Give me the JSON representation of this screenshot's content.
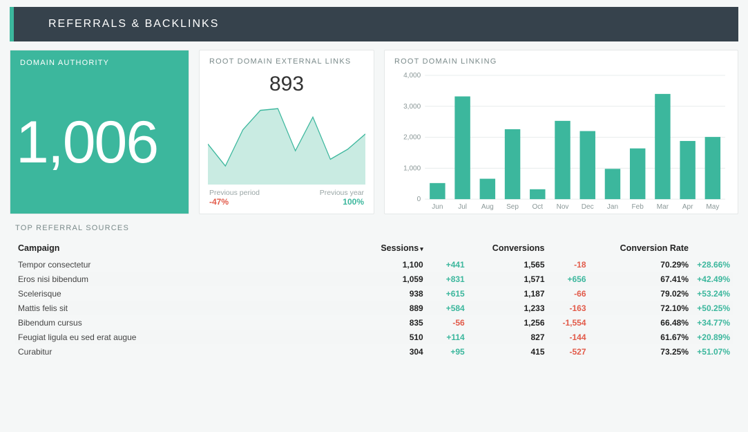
{
  "header": {
    "title": "REFERRALS & BACKLINKS"
  },
  "domain_authority": {
    "title": "DOMAIN AUTHORITY",
    "value": "1,006",
    "bg_color": "#3cb79d",
    "text_color": "#ffffff",
    "value_fontsize": 86
  },
  "external_links": {
    "title": "ROOT DOMAIN EXTERNAL LINKS",
    "value": "893",
    "sparkline": {
      "type": "area-line",
      "points": [
        48,
        22,
        65,
        88,
        90,
        40,
        80,
        30,
        42,
        60
      ],
      "line_color": "#3cb79d",
      "fill_color": "#c9ebe2",
      "line_width": 1.2,
      "y_range": [
        0,
        100
      ]
    },
    "prev_period_label": "Previous period",
    "prev_period_value": "-47%",
    "prev_period_color": "#e25b4a",
    "prev_year_label": "Previous year",
    "prev_year_value": "100%",
    "prev_year_color": "#3cb79d"
  },
  "linking_chart": {
    "title": "ROOT DOMAIN LINKING",
    "type": "bar",
    "categories": [
      "Jun",
      "Jul",
      "Aug",
      "Sep",
      "Oct",
      "Nov",
      "Dec",
      "Jan",
      "Feb",
      "Mar",
      "Apr",
      "May"
    ],
    "values": [
      520,
      3320,
      660,
      2260,
      320,
      2530,
      2200,
      980,
      1640,
      3400,
      1880,
      2010
    ],
    "bar_color": "#3cb79d",
    "ylim": [
      0,
      4000
    ],
    "ytick_step": 1000,
    "grid_color": "#e7ecec",
    "axis_label_color": "#8a9797",
    "axis_fontsize": 10,
    "bar_width": 0.62
  },
  "table": {
    "title": "TOP REFERRAL SOURCES",
    "sort_column": "Sessions",
    "columns": [
      "Campaign",
      "Sessions",
      "",
      "Conversions",
      "",
      "Conversion Rate",
      ""
    ],
    "rows": [
      {
        "campaign": "Tempor consectetur",
        "sessions": "1,100",
        "sessions_d": "+441",
        "sessions_d_pos": true,
        "conv": "1,565",
        "conv_d": "-18",
        "conv_d_pos": false,
        "rate": "70.29%",
        "rate_d": "+28.66%",
        "rate_d_pos": true
      },
      {
        "campaign": "Eros nisi bibendum",
        "sessions": "1,059",
        "sessions_d": "+831",
        "sessions_d_pos": true,
        "conv": "1,571",
        "conv_d": "+656",
        "conv_d_pos": true,
        "rate": "67.41%",
        "rate_d": "+42.49%",
        "rate_d_pos": true
      },
      {
        "campaign": "Scelerisque",
        "sessions": "938",
        "sessions_d": "+615",
        "sessions_d_pos": true,
        "conv": "1,187",
        "conv_d": "-66",
        "conv_d_pos": false,
        "rate": "79.02%",
        "rate_d": "+53.24%",
        "rate_d_pos": true
      },
      {
        "campaign": "Mattis felis sit",
        "sessions": "889",
        "sessions_d": "+584",
        "sessions_d_pos": true,
        "conv": "1,233",
        "conv_d": "-163",
        "conv_d_pos": false,
        "rate": "72.10%",
        "rate_d": "+50.25%",
        "rate_d_pos": true
      },
      {
        "campaign": "Bibendum cursus",
        "sessions": "835",
        "sessions_d": "-56",
        "sessions_d_pos": false,
        "conv": "1,256",
        "conv_d": "-1,554",
        "conv_d_pos": false,
        "rate": "66.48%",
        "rate_d": "+34.77%",
        "rate_d_pos": true
      },
      {
        "campaign": "Feugiat ligula eu sed erat augue",
        "sessions": "510",
        "sessions_d": "+114",
        "sessions_d_pos": true,
        "conv": "827",
        "conv_d": "-144",
        "conv_d_pos": false,
        "rate": "61.67%",
        "rate_d": "+20.89%",
        "rate_d_pos": true
      },
      {
        "campaign": "Curabitur",
        "sessions": "304",
        "sessions_d": "+95",
        "sessions_d_pos": true,
        "conv": "415",
        "conv_d": "-527",
        "conv_d_pos": false,
        "rate": "73.25%",
        "rate_d": "+51.07%",
        "rate_d_pos": true
      }
    ]
  },
  "colors": {
    "header_bg": "#36424c",
    "accent": "#3cb79d",
    "negative": "#e25b4a",
    "card_border": "#e5e8e8",
    "page_bg": "#f5f7f7"
  }
}
